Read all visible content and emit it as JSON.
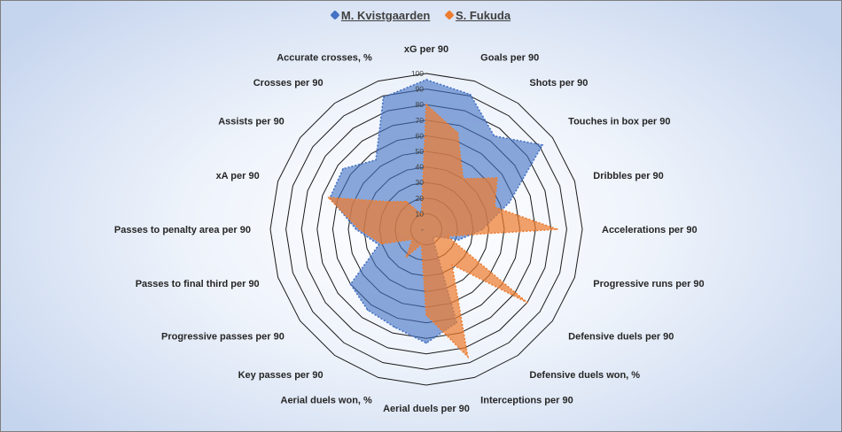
{
  "chart_data": {
    "type": "radar",
    "title": "",
    "axes": [
      "xG per 90",
      "Goals per 90",
      "Shots per 90",
      "Touches in box per 90",
      "Dribbles per 90",
      "Accelerations per 90",
      "Progressive runs per 90",
      "Defensive duels per 90",
      "Defensive duels won, %",
      "Interceptions per 90",
      "Aerial duels per 90",
      "Aerial duels won, %",
      "Key passes per 90",
      "Progressive passes per 90",
      "Passes to final third per 90",
      "Passes to penalty area per 90",
      "xA per 90",
      "Assists per 90",
      "Crosses per 90",
      "Accurate crosses, %"
    ],
    "rlim": [
      0,
      100
    ],
    "ticks": [
      10,
      20,
      30,
      40,
      50,
      60,
      70,
      80,
      90,
      100
    ],
    "legend_position": "top",
    "grid": true,
    "series": [
      {
        "name": "M. Kvistgaarden",
        "color": "#4472c4",
        "values": [
          96,
          91,
          74,
          92,
          56,
          36,
          22,
          8,
          7,
          63,
          73,
          66,
          64,
          60,
          32,
          45,
          65,
          66,
          55,
          89
        ]
      },
      {
        "name": "S. Fukuda",
        "color": "#ed7d31",
        "values": [
          80,
          65,
          40,
          56,
          46,
          84,
          14,
          80,
          28,
          86,
          55,
          10,
          22,
          11,
          30,
          43,
          66,
          30,
          22,
          10
        ]
      }
    ]
  }
}
